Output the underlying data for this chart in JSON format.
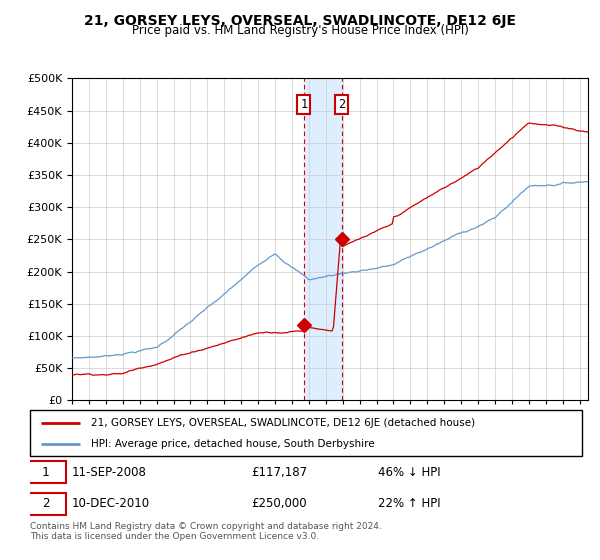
{
  "title": "21, GORSEY LEYS, OVERSEAL, SWADLINCOTE, DE12 6JE",
  "subtitle": "Price paid vs. HM Land Registry's House Price Index (HPI)",
  "legend_line1": "21, GORSEY LEYS, OVERSEAL, SWADLINCOTE, DE12 6JE (detached house)",
  "legend_line2": "HPI: Average price, detached house, South Derbyshire",
  "footnote": "Contains HM Land Registry data © Crown copyright and database right 2024.\nThis data is licensed under the Open Government Licence v3.0.",
  "red_color": "#cc0000",
  "blue_color": "#6699cc",
  "shade_color": "#ddeeff",
  "point1_date_num": 2008.7,
  "point2_date_num": 2010.95,
  "point1_red_y": 117187,
  "point2_red_y": 250000,
  "ylim": [
    0,
    500000
  ],
  "xlim_start": 1995,
  "xlim_end": 2025.5
}
